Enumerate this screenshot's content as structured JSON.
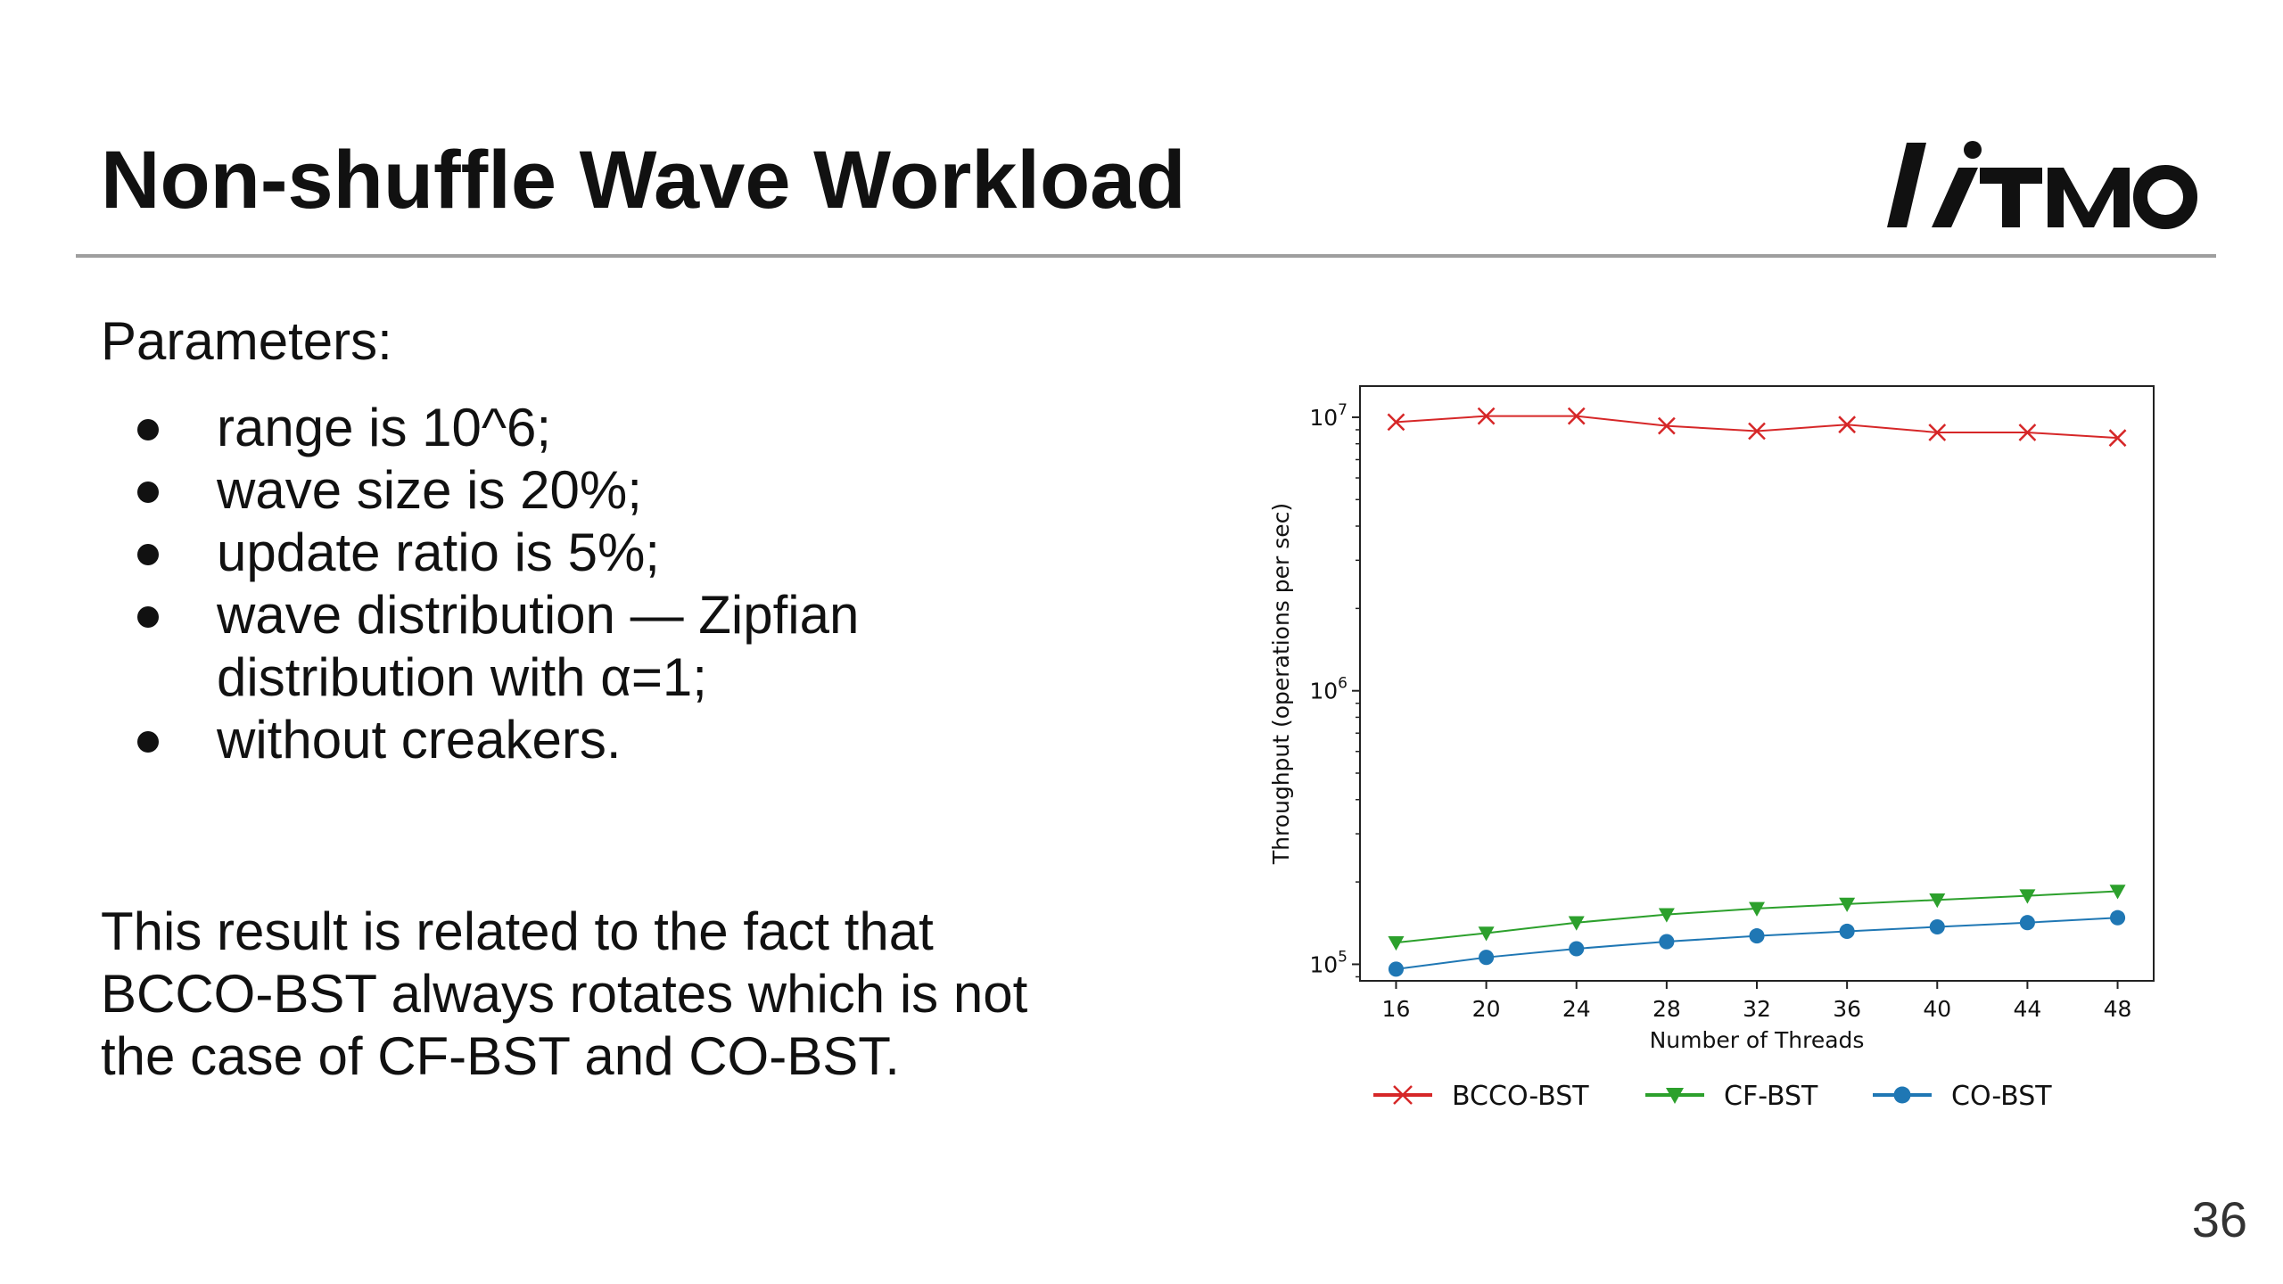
{
  "slide": {
    "title": "Non-shuffle Wave Workload",
    "logo_text": "ITMO",
    "page_number": "36",
    "params_heading": "Parameters:",
    "bullets": [
      {
        "lines": [
          "range is 10^6;"
        ]
      },
      {
        "lines": [
          "wave size is 20%;"
        ]
      },
      {
        "lines": [
          "update ratio is 5%;"
        ]
      },
      {
        "lines": [
          "wave distribution — Zipfian",
          "distribution with α=1;"
        ]
      },
      {
        "lines": [
          "without creakers."
        ]
      }
    ],
    "conclusion_lines": [
      "This result is related to the fact that",
      "BCCO-BST always rotates which is not",
      "the case of CF-BST and CO-BST."
    ]
  },
  "chart_data": {
    "type": "line",
    "title": "",
    "xlabel": "Number of Threads",
    "ylabel": "Throughput (operations per sec)",
    "yscale": "log",
    "x": [
      16,
      20,
      24,
      28,
      32,
      36,
      40,
      44,
      48
    ],
    "xticks": [
      "16",
      "20",
      "24",
      "28",
      "32",
      "36",
      "40",
      "44",
      "48"
    ],
    "yticks": [
      {
        "base": "10",
        "exp": "7",
        "value": 10000000
      },
      {
        "base": "10",
        "exp": "6",
        "value": 1000000
      },
      {
        "base": "10",
        "exp": "5",
        "value": 100000
      }
    ],
    "ylim": [
      87000,
      13000000
    ],
    "grid": false,
    "legend_position": "bottom",
    "series": [
      {
        "name": "BCCO-BST",
        "color": "#d62728",
        "marker": "x",
        "values": [
          9600000,
          10100000,
          10100000,
          9300000,
          8900000,
          9400000,
          8800000,
          8800000,
          8400000
        ]
      },
      {
        "name": "CF-BST",
        "color": "#2ca02c",
        "marker": "triangle-down",
        "values": [
          120000,
          130000,
          142000,
          152000,
          160000,
          166000,
          172000,
          178000,
          185000
        ]
      },
      {
        "name": "CO-BST",
        "color": "#1f77b4",
        "marker": "circle",
        "values": [
          96000,
          106000,
          114000,
          121000,
          127000,
          132000,
          137000,
          142000,
          148000
        ]
      }
    ]
  }
}
